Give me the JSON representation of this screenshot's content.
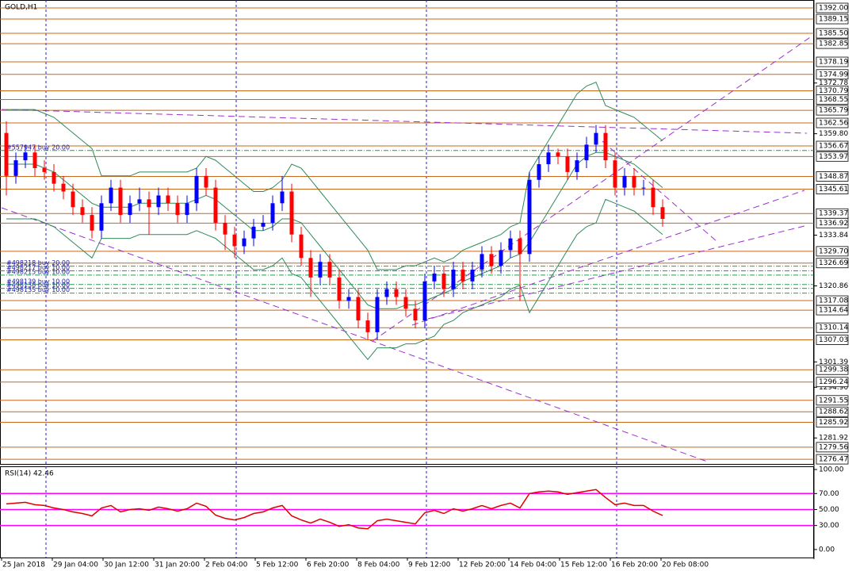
{
  "chart_data": [
    {
      "type": "candlestick",
      "title": "GOLD,H1",
      "candles": [
        [
          1360,
          1363,
          1344,
          1349
        ],
        [
          1349,
          1355,
          1347,
          1353
        ],
        [
          1353,
          1357,
          1351,
          1355
        ],
        [
          1355,
          1357,
          1349,
          1351
        ],
        [
          1351,
          1353,
          1348,
          1350
        ],
        [
          1350,
          1352,
          1345,
          1347
        ],
        [
          1347,
          1349,
          1343,
          1345
        ],
        [
          1345,
          1347,
          1339,
          1341
        ],
        [
          1341,
          1343,
          1337,
          1339
        ],
        [
          1339,
          1341,
          1333,
          1335
        ],
        [
          1335,
          1344,
          1333,
          1342
        ],
        [
          1342,
          1348,
          1340,
          1346
        ],
        [
          1346,
          1348,
          1337,
          1339
        ],
        [
          1339,
          1344,
          1337,
          1342
        ],
        [
          1342,
          1346,
          1340,
          1343
        ],
        [
          1343,
          1345,
          1334,
          1341
        ],
        [
          1341,
          1346,
          1339,
          1344
        ],
        [
          1344,
          1346,
          1340,
          1342
        ],
        [
          1342,
          1344,
          1337,
          1339
        ],
        [
          1339,
          1344,
          1337,
          1342
        ],
        [
          1342,
          1351,
          1340,
          1349
        ],
        [
          1349,
          1351,
          1344,
          1346
        ],
        [
          1346,
          1348,
          1335,
          1337
        ],
        [
          1337,
          1339,
          1330,
          1334
        ],
        [
          1334,
          1336,
          1328,
          1331
        ],
        [
          1331,
          1335,
          1329,
          1333
        ],
        [
          1333,
          1338,
          1331,
          1336
        ],
        [
          1336,
          1339,
          1335,
          1337
        ],
        [
          1337,
          1344,
          1335,
          1342
        ],
        [
          1342,
          1349,
          1340,
          1345
        ],
        [
          1345,
          1347,
          1332,
          1334
        ],
        [
          1334,
          1336,
          1326,
          1328
        ],
        [
          1328,
          1330,
          1318,
          1323
        ],
        [
          1323,
          1329,
          1321,
          1327
        ],
        [
          1327,
          1329,
          1321,
          1323
        ],
        [
          1323,
          1325,
          1315,
          1317
        ],
        [
          1317,
          1320,
          1315,
          1318
        ],
        [
          1318,
          1320,
          1310,
          1312
        ],
        [
          1312,
          1314,
          1307,
          1309
        ],
        [
          1309,
          1320,
          1307,
          1318
        ],
        [
          1318,
          1322,
          1316,
          1320
        ],
        [
          1320,
          1322,
          1316,
          1318
        ],
        [
          1318,
          1320,
          1313,
          1315
        ],
        [
          1315,
          1317,
          1310,
          1312
        ],
        [
          1312,
          1324,
          1310,
          1322
        ],
        [
          1322,
          1326,
          1320,
          1324
        ],
        [
          1324,
          1326,
          1318,
          1320
        ],
        [
          1320,
          1327,
          1318,
          1325
        ],
        [
          1325,
          1327,
          1320,
          1322
        ],
        [
          1322,
          1327,
          1320,
          1325
        ],
        [
          1325,
          1331,
          1323,
          1329
        ],
        [
          1329,
          1331,
          1324,
          1326
        ],
        [
          1326,
          1332,
          1324,
          1330
        ],
        [
          1330,
          1335,
          1328,
          1333
        ],
        [
          1333,
          1335,
          1317,
          1329
        ],
        [
          1329,
          1350,
          1327,
          1348
        ],
        [
          1348,
          1354,
          1346,
          1352
        ],
        [
          1352,
          1357,
          1350,
          1355
        ],
        [
          1355,
          1356,
          1352,
          1354
        ],
        [
          1354,
          1356,
          1348,
          1350
        ],
        [
          1350,
          1355,
          1348,
          1353
        ],
        [
          1353,
          1359,
          1351,
          1357
        ],
        [
          1357,
          1362,
          1355,
          1360
        ],
        [
          1360,
          1362,
          1351,
          1353
        ],
        [
          1353,
          1355,
          1344,
          1346
        ],
        [
          1346,
          1351,
          1344,
          1349
        ],
        [
          1349,
          1351,
          1344,
          1346
        ],
        [
          1346,
          1348,
          1344,
          1346
        ],
        [
          1346,
          1348,
          1339,
          1341
        ],
        [
          1341,
          1343,
          1336,
          1338
        ]
      ],
      "up_color": "#0000ff",
      "down_color": "#ff0000",
      "ylim": [
        1275.27,
        1394.03
      ],
      "yticks": [
        1372.78,
        {
          "value": 1359.8,
          "label": "1359.80"
        },
        1333.84,
        1320.86,
        1301.39,
        {
          "value": 1294.9,
          "label": "1294.90"
        },
        1281.92
      ],
      "levels": [
        {
          "value": 1392,
          "label": "1392.00"
        },
        1389.15,
        {
          "value": 1385.5,
          "label": "1385.50"
        },
        1382.85,
        1378.19,
        1374.99,
        1370.79,
        1368.55,
        1365.79,
        1362.56,
        1356.67,
        1353.97,
        1348.87,
        1345.61,
        1339.37,
        1336.92,
        {
          "value": 1329.7,
          "label": "1329.70"
        },
        1326.69,
        1317.08,
        1314.64,
        1310.14,
        1307.03,
        1299.38,
        1296.24,
        1291.55,
        1288.62,
        1285.92,
        1279.56,
        1276.47
      ],
      "level_color": "#c8691e",
      "bollinger": {
        "color": "#2e8b57",
        "upper": [
          1366,
          1366,
          1366,
          1366,
          1365,
          1364,
          1362,
          1360,
          1358,
          1356,
          1349,
          1349,
          1349,
          1349,
          1350,
          1350,
          1350,
          1350,
          1350,
          1350,
          1351,
          1354,
          1353,
          1351,
          1349,
          1347,
          1345,
          1345,
          1346,
          1348,
          1352,
          1351,
          1348,
          1345,
          1342,
          1339,
          1336,
          1333,
          1330,
          1325,
          1325,
          1325,
          1326,
          1326,
          1327,
          1328,
          1327,
          1328,
          1330,
          1331,
          1332,
          1333,
          1334,
          1336,
          1337,
          1350,
          1354,
          1358,
          1362,
          1366,
          1370,
          1372,
          1373,
          1367,
          1366,
          1365,
          1364,
          1362,
          1360,
          1358
        ],
        "middle": [
          1352,
          1352,
          1352,
          1352,
          1351,
          1350,
          1348,
          1346,
          1344,
          1342,
          1341,
          1341,
          1341,
          1341,
          1342,
          1342,
          1342,
          1342,
          1342,
          1342,
          1343,
          1344,
          1343,
          1341,
          1339,
          1337,
          1335,
          1335,
          1336,
          1338,
          1338,
          1337,
          1334,
          1331,
          1328,
          1325,
          1322,
          1319,
          1316,
          1315,
          1315,
          1315,
          1316,
          1316,
          1317,
          1318,
          1319,
          1320,
          1322,
          1323,
          1324,
          1325,
          1326,
          1328,
          1329,
          1332,
          1336,
          1340,
          1344,
          1348,
          1352,
          1354,
          1355,
          1355,
          1354,
          1353,
          1352,
          1350,
          1348,
          1346
        ],
        "lower": [
          1338,
          1338,
          1338,
          1338,
          1337,
          1336,
          1334,
          1332,
          1330,
          1328,
          1333,
          1333,
          1333,
          1333,
          1334,
          1334,
          1334,
          1334,
          1334,
          1334,
          1335,
          1334,
          1333,
          1331,
          1329,
          1327,
          1325,
          1325,
          1326,
          1328,
          1324,
          1323,
          1320,
          1317,
          1314,
          1311,
          1308,
          1305,
          1302,
          1305,
          1305,
          1305,
          1306,
          1306,
          1307,
          1308,
          1311,
          1312,
          1314,
          1315,
          1316,
          1317,
          1318,
          1320,
          1321,
          1314,
          1318,
          1322,
          1326,
          1330,
          1334,
          1336,
          1337,
          1343,
          1342,
          1341,
          1340,
          1338,
          1336,
          1334
        ]
      },
      "orders": [
        {
          "label": "#557947 buy 20.00",
          "price": 1355.5
        },
        {
          "label": "#498218 buy 20.00",
          "price": 1325.9
        },
        {
          "label": "#498217 buy 10.00",
          "price": 1324.7
        },
        {
          "label": "#498215 buy 10.00",
          "price": 1323.6
        },
        {
          "label": "#498139 buy 10.00",
          "price": 1321.2
        },
        {
          "label": "#498138 buy 10.00",
          "price": 1320.2
        },
        {
          "label": "#498135 buy 10.00",
          "price": 1319
        }
      ],
      "order_color": "#22a04a",
      "x_labels": [
        "25 Jan 2018",
        "29 Jan 04:00",
        "30 Jan 12:00",
        "31 Jan 20:00",
        "2 Feb 04:00",
        "5 Feb 12:00",
        "6 Feb 20:00",
        "8 Feb 04:00",
        "9 Feb 12:00",
        "12 Feb 20:00",
        "14 Feb 04:00",
        "15 Feb 12:00",
        "16 Feb 20:00",
        "20 Feb 08:00"
      ]
    },
    {
      "type": "line",
      "title": "RSI(14) 42.46",
      "values": [
        57,
        58,
        59,
        56,
        55,
        52,
        50,
        47,
        45,
        42,
        52,
        55,
        47,
        50,
        51,
        49,
        53,
        51,
        48,
        51,
        58,
        54,
        43,
        39,
        37,
        40,
        45,
        47,
        52,
        55,
        42,
        37,
        33,
        38,
        34,
        29,
        31,
        27,
        26,
        36,
        38,
        36,
        34,
        32,
        46,
        49,
        45,
        51,
        48,
        51,
        55,
        51,
        55,
        58,
        52,
        70,
        72,
        73,
        72,
        69,
        71,
        73,
        75,
        65,
        56,
        58,
        55,
        55,
        48,
        42.46
      ],
      "color": "#e00000",
      "ylim": [
        -10,
        104
      ],
      "yticks": [
        {
          "value": 100,
          "label": "100.00"
        },
        {
          "value": 70,
          "label": "70.00"
        },
        {
          "value": 50,
          "label": "50.00"
        },
        {
          "value": 30,
          "label": "30.00"
        },
        {
          "value": 0,
          "label": "0.00"
        }
      ],
      "levels": [
        70,
        50,
        30
      ],
      "level_color": "#ff00ff"
    }
  ]
}
